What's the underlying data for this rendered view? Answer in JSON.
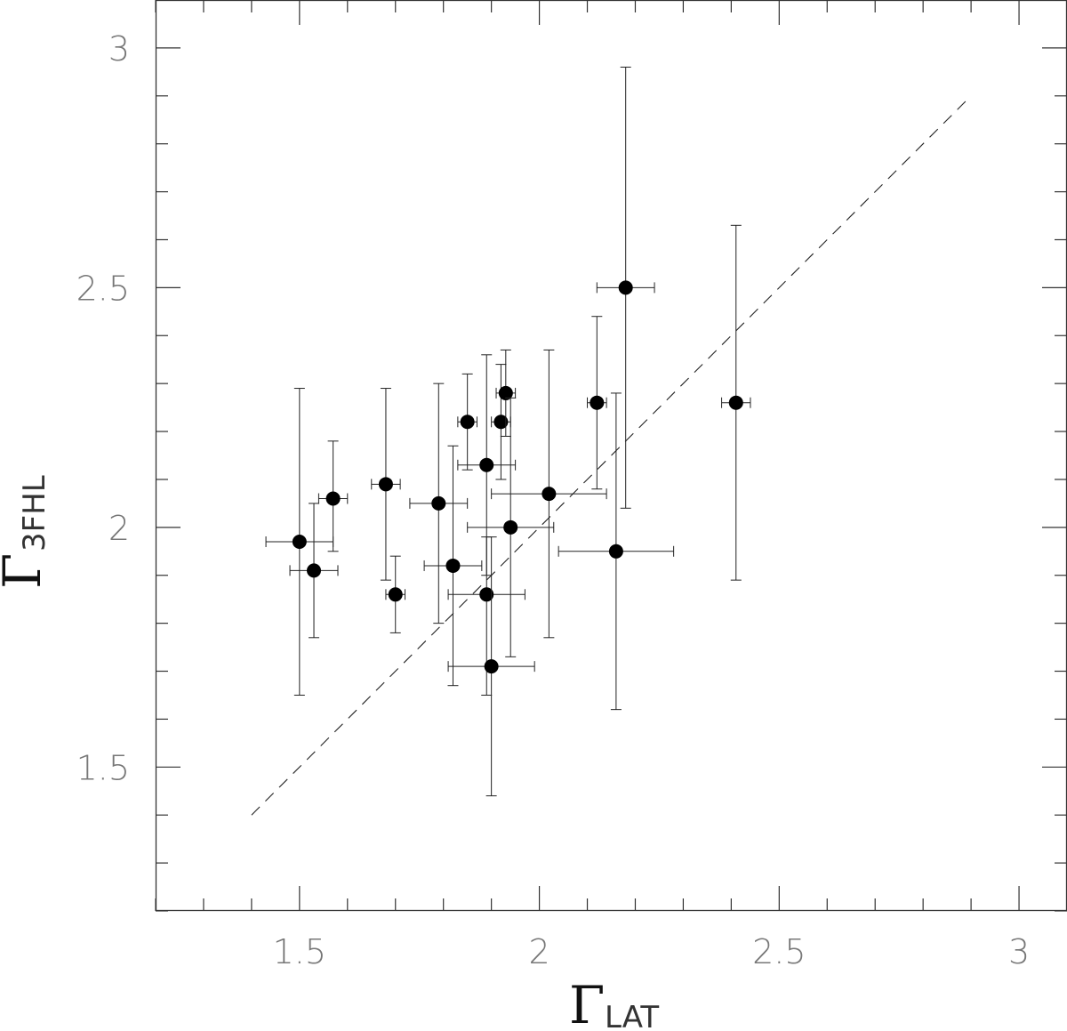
{
  "chart_data": {
    "type": "scatter",
    "xlabel": {
      "symbol": "Γ",
      "subscript": "LAT"
    },
    "ylabel": {
      "symbol": "Γ",
      "subscript": "3FHL"
    },
    "xlim": [
      1.2,
      3.1
    ],
    "ylim": [
      1.2,
      3.1
    ],
    "x_ticks_major": [
      1.5,
      2,
      2.5,
      3
    ],
    "x_tick_labels": [
      "1.5",
      "2",
      "2.5",
      "3"
    ],
    "y_ticks_major": [
      1.5,
      2,
      2.5,
      3
    ],
    "y_tick_labels": [
      "1.5",
      "2",
      "2.5",
      "3"
    ],
    "minor_tick_step": 0.1,
    "grid": false,
    "legend": "none",
    "reference_line": {
      "style": "dashed",
      "x": [
        1.4,
        2.9
      ],
      "y": [
        1.4,
        2.9
      ]
    },
    "colors": {
      "points": "#000000",
      "axes": "#333333",
      "tick_labels": "#777777"
    },
    "points": [
      {
        "x": 1.5,
        "y": 1.97,
        "xerr": [
          0.07,
          0.07
        ],
        "yerr": [
          0.32,
          0.32
        ]
      },
      {
        "x": 1.53,
        "y": 1.91,
        "xerr": [
          0.05,
          0.05
        ],
        "yerr": [
          0.14,
          0.14
        ]
      },
      {
        "x": 1.57,
        "y": 2.06,
        "xerr": [
          0.03,
          0.03
        ],
        "yerr": [
          0.11,
          0.12
        ]
      },
      {
        "x": 1.68,
        "y": 2.09,
        "xerr": [
          0.03,
          0.03
        ],
        "yerr": [
          0.2,
          0.2
        ]
      },
      {
        "x": 1.7,
        "y": 1.86,
        "xerr": [
          0.02,
          0.02
        ],
        "yerr": [
          0.08,
          0.08
        ]
      },
      {
        "x": 1.79,
        "y": 2.05,
        "xerr": [
          0.06,
          0.06
        ],
        "yerr": [
          0.25,
          0.25
        ]
      },
      {
        "x": 1.82,
        "y": 1.92,
        "xerr": [
          0.06,
          0.06
        ],
        "yerr": [
          0.25,
          0.25
        ]
      },
      {
        "x": 1.85,
        "y": 2.22,
        "xerr": [
          0.02,
          0.02
        ],
        "yerr": [
          0.1,
          0.1
        ]
      },
      {
        "x": 1.89,
        "y": 2.13,
        "xerr": [
          0.06,
          0.06
        ],
        "yerr": [
          0.23,
          0.23
        ]
      },
      {
        "x": 1.89,
        "y": 1.86,
        "xerr": [
          0.08,
          0.08
        ],
        "yerr": [
          0.21,
          0.12
        ]
      },
      {
        "x": 1.9,
        "y": 1.71,
        "xerr": [
          0.09,
          0.09
        ],
        "yerr": [
          0.27,
          0.27
        ]
      },
      {
        "x": 1.92,
        "y": 2.22,
        "xerr": [
          0.02,
          0.02
        ],
        "yerr": [
          0.12,
          0.12
        ]
      },
      {
        "x": 1.93,
        "y": 2.28,
        "xerr": [
          0.02,
          0.02
        ],
        "yerr": [
          0.09,
          0.09
        ]
      },
      {
        "x": 1.94,
        "y": 2.0,
        "xerr": [
          0.09,
          0.09
        ],
        "yerr": [
          0.27,
          0.27
        ]
      },
      {
        "x": 2.02,
        "y": 2.07,
        "xerr": [
          0.12,
          0.12
        ],
        "yerr": [
          0.3,
          0.3
        ]
      },
      {
        "x": 2.12,
        "y": 2.26,
        "xerr": [
          0.02,
          0.02
        ],
        "yerr": [
          0.18,
          0.18
        ]
      },
      {
        "x": 2.16,
        "y": 1.95,
        "xerr": [
          0.12,
          0.12
        ],
        "yerr": [
          0.33,
          0.33
        ]
      },
      {
        "x": 2.18,
        "y": 2.5,
        "xerr": [
          0.06,
          0.06
        ],
        "yerr": [
          0.46,
          0.46
        ]
      },
      {
        "x": 2.41,
        "y": 2.26,
        "xerr": [
          0.03,
          0.03
        ],
        "yerr": [
          0.37,
          0.37
        ]
      }
    ]
  }
}
